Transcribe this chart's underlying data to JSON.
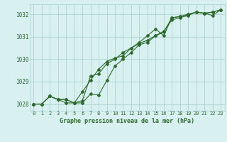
{
  "x": [
    0,
    1,
    2,
    3,
    4,
    5,
    6,
    7,
    8,
    9,
    10,
    11,
    12,
    13,
    14,
    15,
    16,
    17,
    18,
    19,
    20,
    21,
    22,
    23
  ],
  "line1": [
    1028.0,
    1028.0,
    1028.35,
    1028.2,
    1028.2,
    1028.05,
    1028.15,
    1029.25,
    1029.35,
    1029.8,
    1030.0,
    1030.3,
    1030.5,
    1030.7,
    1030.85,
    1031.05,
    1031.2,
    1031.85,
    1031.9,
    1032.0,
    1032.1,
    1032.05,
    1032.1,
    1032.2
  ],
  "line2": [
    1028.0,
    1028.0,
    1028.35,
    1028.2,
    1028.2,
    1028.05,
    1028.55,
    1029.05,
    1029.55,
    1029.9,
    1030.05,
    1030.15,
    1030.5,
    1030.75,
    1031.05,
    1031.35,
    1031.05,
    1031.85,
    1031.9,
    1032.0,
    1032.1,
    1032.05,
    1032.1,
    1032.2
  ],
  "line3": [
    1028.0,
    1028.0,
    1028.35,
    1028.2,
    1028.05,
    1028.05,
    1028.05,
    1028.45,
    1028.4,
    1029.05,
    1029.7,
    1030.0,
    1030.3,
    1030.65,
    1030.75,
    1031.05,
    1031.25,
    1031.75,
    1031.85,
    1031.95,
    1032.1,
    1032.05,
    1031.95,
    1032.2
  ],
  "line_color": "#2d6a2d",
  "bg_color": "#d8f0f0",
  "grid_color": "#aed4d4",
  "ylim": [
    1027.7,
    1032.45
  ],
  "xlim": [
    -0.5,
    23.5
  ],
  "xlabel": "Graphe pression niveau de la mer (hPa)",
  "xticks": [
    0,
    1,
    2,
    3,
    4,
    5,
    6,
    7,
    8,
    9,
    10,
    11,
    12,
    13,
    14,
    15,
    16,
    17,
    18,
    19,
    20,
    21,
    22,
    23
  ],
  "yticks": [
    1028,
    1029,
    1030,
    1031,
    1032
  ],
  "marker": "D",
  "markersize": 2.0,
  "linewidth": 0.8,
  "tick_fontsize": 5.0,
  "xlabel_fontsize": 6.0
}
